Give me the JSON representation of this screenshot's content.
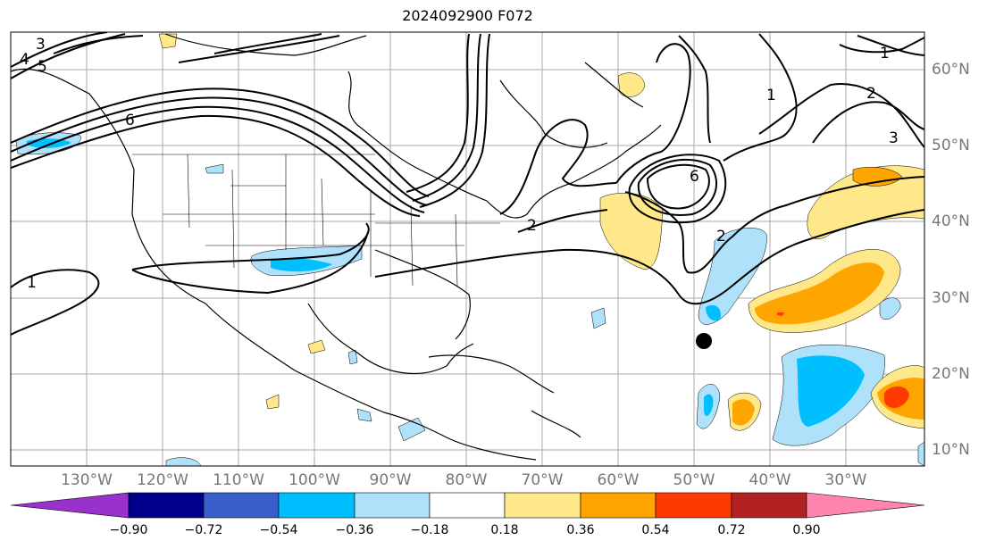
{
  "title": "2024092900 F072",
  "lat_labels": [
    "60°N",
    "50°N",
    "40°N",
    "30°N",
    "20°N",
    "10°N"
  ],
  "lon_labels": [
    "130°W",
    "120°W",
    "110°W",
    "100°W",
    "90°W",
    "80°W",
    "70°W",
    "60°W",
    "50°W",
    "40°W",
    "30°W"
  ],
  "colorbar": {
    "ticks": [
      "−0.90",
      "−0.72",
      "−0.54",
      "−0.36",
      "−0.18",
      "0.18",
      "0.36",
      "0.54",
      "0.72",
      "0.90"
    ],
    "colors": [
      "#9932cc",
      "#00008b",
      "#3a5fcd",
      "#00bfff",
      "#afe1fa",
      "#ffffff",
      "#ffe88a",
      "#ffa500",
      "#ff3a00",
      "#b22222",
      "#ff85b0"
    ]
  },
  "contour_labels": [
    "1",
    "2",
    "3",
    "4",
    "5",
    "6",
    "1",
    "2",
    "3",
    "6",
    "2",
    "1"
  ],
  "marker": "storm-center-dot"
}
